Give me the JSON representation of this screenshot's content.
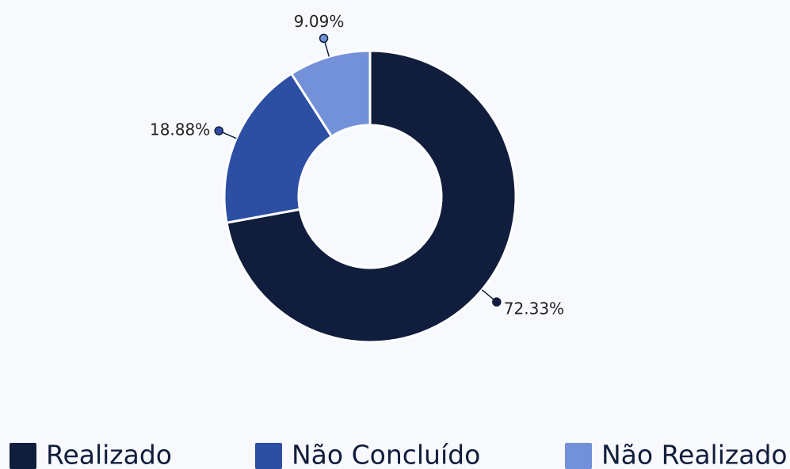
{
  "chart_data": {
    "type": "donut",
    "categories": [
      "Realizado",
      "Não Concluído",
      "Não Realizado"
    ],
    "values": [
      72.33,
      18.88,
      9.09
    ],
    "value_labels": [
      "72.33%",
      "18.88%",
      "9.09%"
    ],
    "colors": [
      "#111d3c",
      "#2c4ea3",
      "#7391d9"
    ]
  }
}
